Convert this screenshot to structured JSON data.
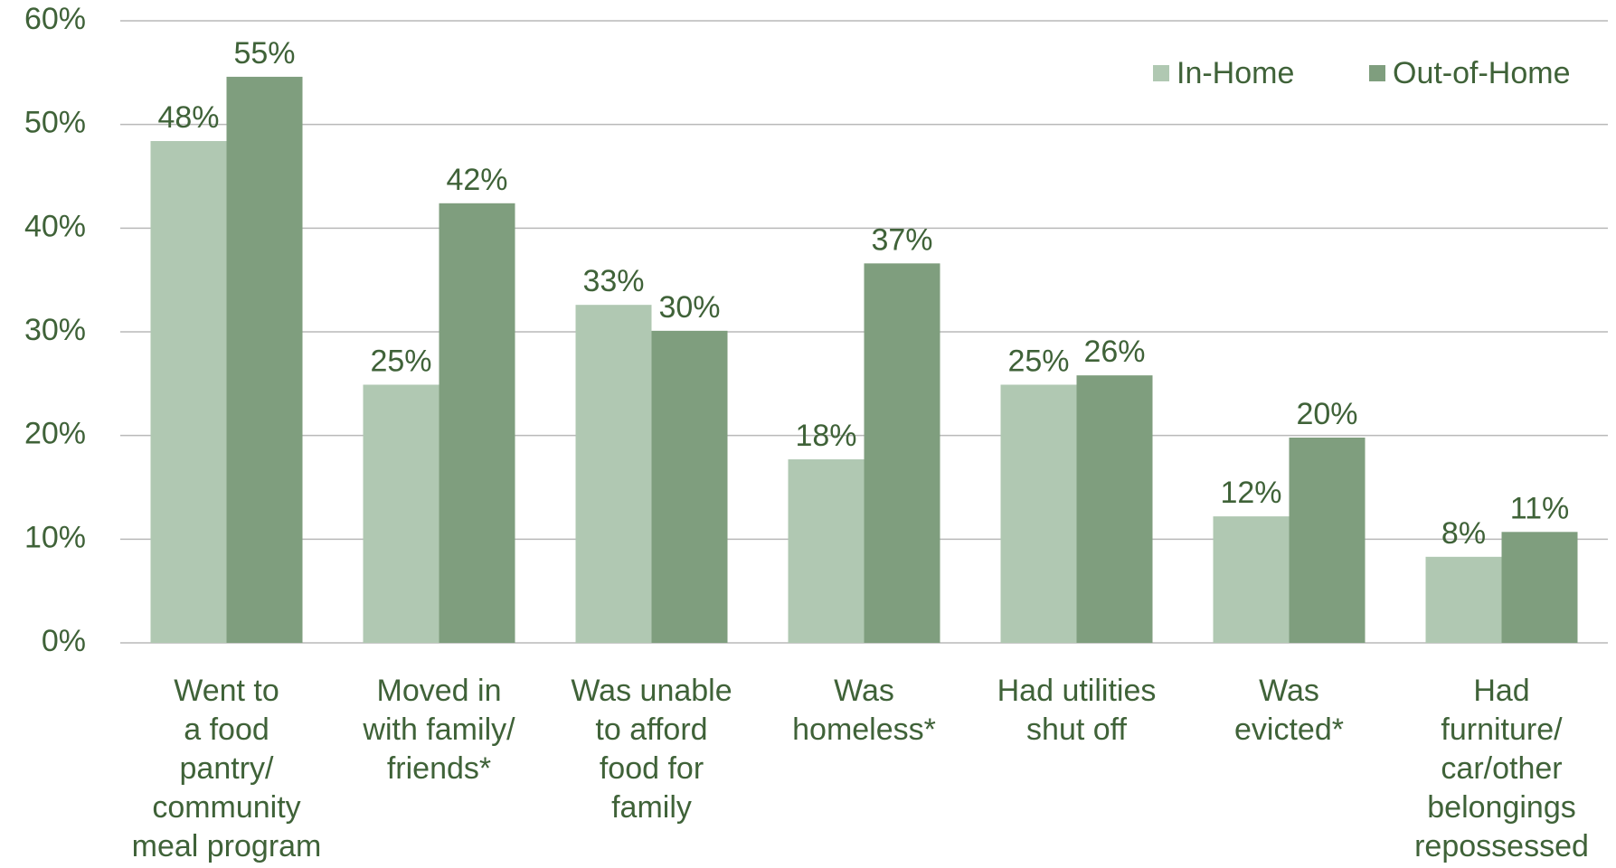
{
  "chart_data": {
    "type": "bar",
    "categories": [
      "Went to\na food\npantry/\ncommunity\nmeal program",
      "Moved in\nwith family/\nfriends*",
      "Was unable\nto afford\nfood for\nfamily",
      "Was\nhomeless*",
      "Had utilities\nshut off",
      "Was\nevicted*",
      "Had\nfurniture/\ncar/other\nbelongings\nrepossessed"
    ],
    "series": [
      {
        "name": "In-Home",
        "color": "#b0c8b2",
        "values": [
          48.4,
          24.9,
          32.6,
          17.7,
          24.9,
          12.2,
          8.3
        ],
        "value_labels": [
          "48%",
          "25%",
          "33%",
          "18%",
          "25%",
          "12%",
          "8%"
        ]
      },
      {
        "name": "Out-of-Home",
        "color": "#7f9e7e",
        "values": [
          54.6,
          42.4,
          30.1,
          36.6,
          25.8,
          19.8,
          10.7
        ],
        "value_labels": [
          "55%",
          "42%",
          "30%",
          "37%",
          "26%",
          "20%",
          "11%"
        ]
      }
    ],
    "ylim": [
      0,
      60
    ],
    "yticks": [
      {
        "value": 0,
        "label": "0%"
      },
      {
        "value": 10,
        "label": "10%"
      },
      {
        "value": 20,
        "label": "20%"
      },
      {
        "value": 30,
        "label": "30%"
      },
      {
        "value": 40,
        "label": "40%"
      },
      {
        "value": 50,
        "label": "50%"
      },
      {
        "value": 60,
        "label": "60%"
      }
    ],
    "grid": true,
    "legend": "top-right"
  }
}
